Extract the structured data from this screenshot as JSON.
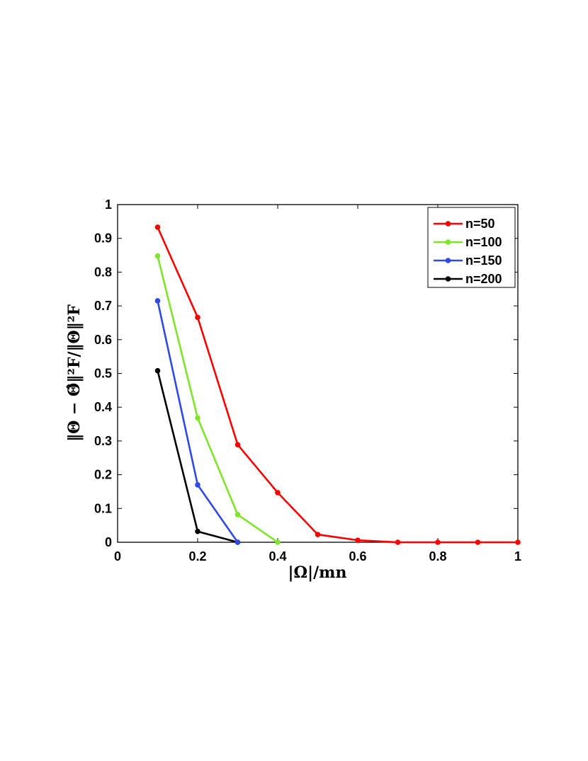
{
  "chart_data": {
    "type": "line",
    "title": "",
    "xlabel": "|Ω|/mn",
    "ylabel": "‖Θ − Θ̂‖²F/‖Θ‖²F",
    "xlim": [
      0,
      1
    ],
    "ylim": [
      0,
      1
    ],
    "xticks": [
      0,
      0.2,
      0.4,
      0.6,
      0.8,
      1
    ],
    "xtick_labels": [
      "0",
      "0.2",
      "0.4",
      "0.6",
      "0.8",
      "1"
    ],
    "yticks": [
      0,
      0.1,
      0.2,
      0.3,
      0.4,
      0.5,
      0.6,
      0.7,
      0.8,
      0.9,
      1
    ],
    "ytick_labels": [
      "0",
      "0.1",
      "0.2",
      "0.3",
      "0.4",
      "0.5",
      "0.6",
      "0.7",
      "0.8",
      "0.9",
      "1"
    ],
    "grid": false,
    "legend_position": "top-right",
    "series": [
      {
        "name": "n=50",
        "color": "#ff0000",
        "x": [
          0.1,
          0.2,
          0.3,
          0.4,
          0.5,
          0.6,
          0.7,
          0.8,
          0.9,
          1.0
        ],
        "y": [
          0.933,
          0.666,
          0.289,
          0.147,
          0.023,
          0.006,
          0.0,
          0.0,
          0.0,
          0.0
        ]
      },
      {
        "name": "n=100",
        "color": "#7fe52a",
        "x": [
          0.1,
          0.2,
          0.3,
          0.4
        ],
        "y": [
          0.848,
          0.368,
          0.082,
          0.0
        ]
      },
      {
        "name": "n=150",
        "color": "#2f49e6",
        "x": [
          0.1,
          0.2,
          0.3
        ],
        "y": [
          0.715,
          0.17,
          0.0
        ]
      },
      {
        "name": "n=200",
        "color": "#000000",
        "x": [
          0.1,
          0.2,
          0.3
        ],
        "y": [
          0.508,
          0.032,
          0.0
        ]
      }
    ]
  }
}
